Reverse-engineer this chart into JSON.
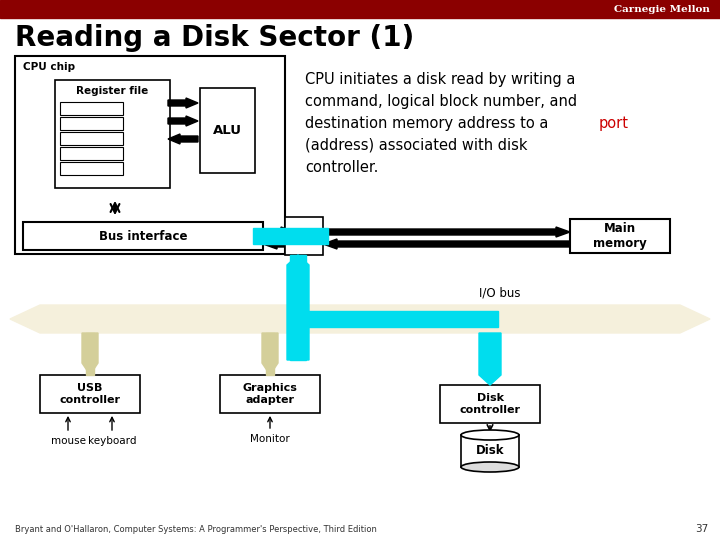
{
  "title": "Reading a Disk Sector (1)",
  "header_text": "Carnegie Mellon",
  "header_bg": "#8B0000",
  "header_text_color": "#FFFFFF",
  "background_color": "#FFFFFF",
  "title_color": "#000000",
  "title_fontsize": 20,
  "desc_highlight_color": "#CC0000",
  "footer_text": "Bryant and O'Hallaron, Computer Systems: A Programmer's Perspective, Third Edition",
  "footer_page": "37",
  "io_bus_color": "#F5F0DC",
  "cyan_color": "#00DDEE",
  "arrow_fill": "#D4CF9A",
  "arrow_edge": "#C8C070",
  "box_outline": "#000000"
}
